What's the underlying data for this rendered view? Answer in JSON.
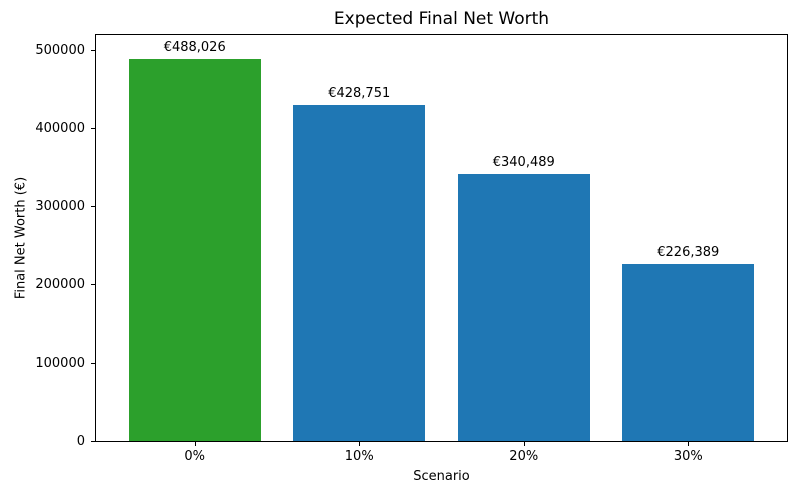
{
  "figure": {
    "title": "Expected Final Net Worth",
    "xlabel": "Scenario",
    "ylabel": "Final Net Worth (€)"
  },
  "chart_data": {
    "type": "bar",
    "title": "Expected Final Net Worth",
    "xlabel": "Scenario",
    "ylabel": "Final Net Worth (€)",
    "categories": [
      "0%",
      "10%",
      "20%",
      "30%"
    ],
    "values": [
      488026,
      428751,
      340489,
      226389
    ],
    "bar_labels": [
      "€488,026",
      "€428,751",
      "€340,489",
      "€226,389"
    ],
    "bar_colors": [
      "#2ca02c",
      "#1f77b4",
      "#1f77b4",
      "#1f77b4"
    ],
    "highlight_color": "#2ca02c",
    "default_color": "#1f77b4",
    "yticks": [
      0,
      100000,
      200000,
      300000,
      400000,
      500000
    ],
    "ytick_labels": [
      "0",
      "100000",
      "200000",
      "300000",
      "400000",
      "500000"
    ],
    "xlim": [
      -0.6,
      3.6
    ],
    "ylim": [
      0,
      518600
    ],
    "grid": false,
    "legend": null,
    "bar_width_fraction": 0.8
  }
}
